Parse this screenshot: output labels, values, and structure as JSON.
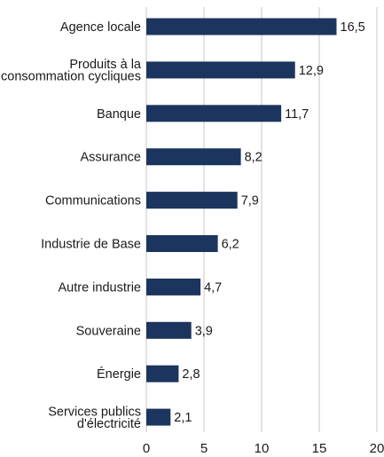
{
  "chart_data": {
    "type": "bar",
    "orientation": "horizontal",
    "categories": [
      [
        "Agence locale"
      ],
      [
        "Produits à la",
        "consommation cycliques"
      ],
      [
        "Banque"
      ],
      [
        "Assurance"
      ],
      [
        "Communications"
      ],
      [
        "Industrie de Base"
      ],
      [
        "Autre industrie"
      ],
      [
        "Souveraine"
      ],
      [
        "Énergie"
      ],
      [
        "Services publics",
        "d'électricité"
      ]
    ],
    "values": [
      16.5,
      12.9,
      11.7,
      8.2,
      7.9,
      6.2,
      4.7,
      3.9,
      2.8,
      2.1
    ],
    "value_labels": [
      "16,5",
      "12,9",
      "11,7",
      "8,2",
      "7,9",
      "6,2",
      "4,7",
      "3,9",
      "2,8",
      "2,1"
    ],
    "xlim": [
      0,
      20
    ],
    "xticks": [
      0,
      5,
      10,
      15,
      20
    ],
    "xtick_labels": [
      "0",
      "5",
      "10",
      "15",
      "20"
    ],
    "grid": "vertical",
    "bar_color": "#1c355e",
    "grid_color": "#e3e3e3",
    "title": "",
    "xlabel": "",
    "ylabel": ""
  }
}
